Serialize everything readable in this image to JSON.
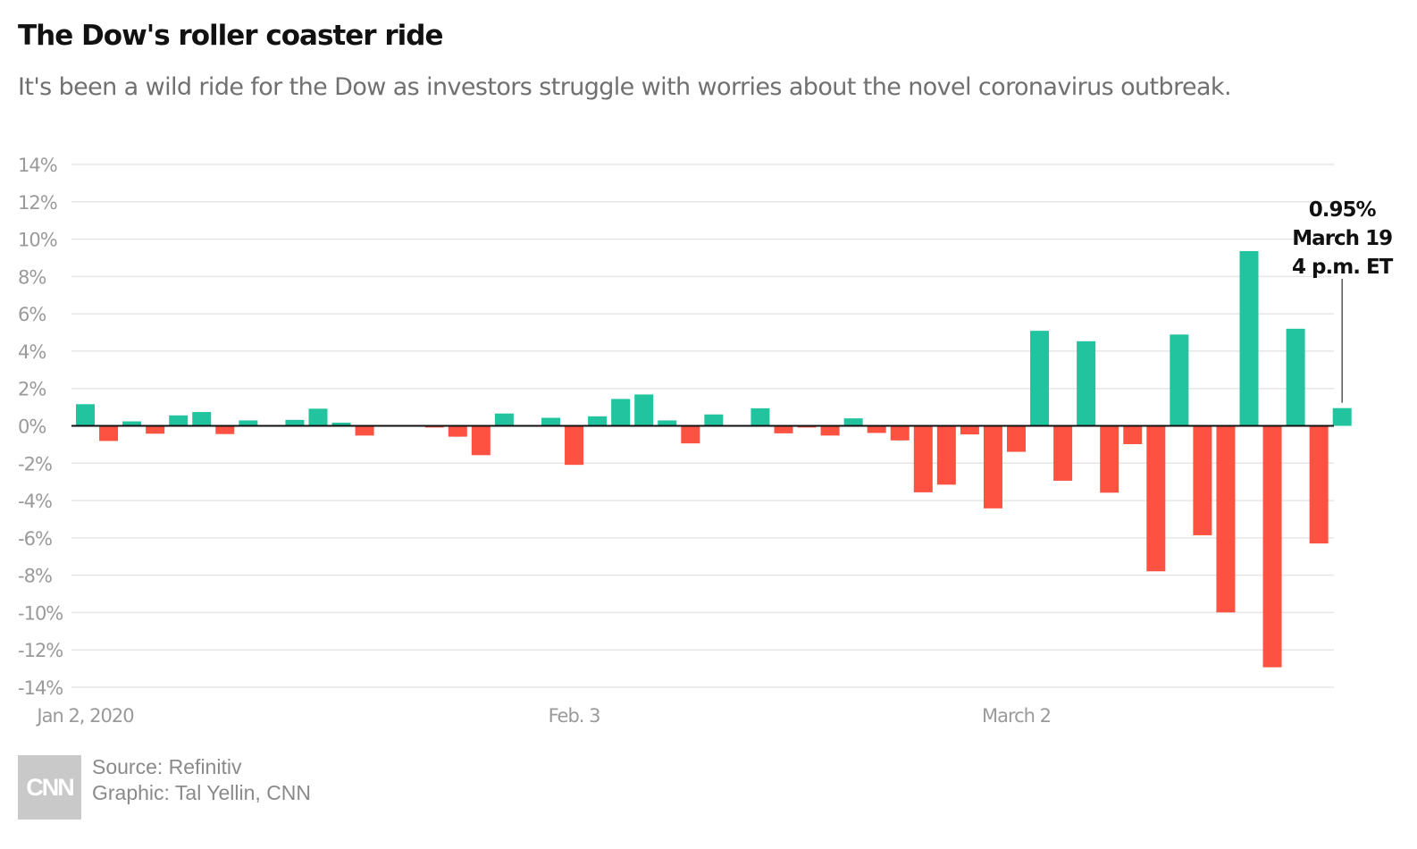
{
  "header": {
    "title": "The Dow's roller coaster ride",
    "subtitle": "It's been a wild ride for the Dow as investors struggle with worries about the novel coronavirus outbreak."
  },
  "footer": {
    "logo_text": "CNN",
    "source": "Source: Refinitiv",
    "graphic": "Graphic: Tal Yellin, CNN"
  },
  "colors": {
    "gain": "#21c49e",
    "loss": "#fd5242",
    "zero_line": "#111111",
    "grid": "#e6e6e6",
    "tick_text": "#9a9a9a"
  },
  "chart_data": {
    "type": "bar",
    "y_unit": "%",
    "ylim": [
      -14,
      14
    ],
    "y_ticks": [
      14,
      12,
      10,
      8,
      6,
      4,
      2,
      0,
      -2,
      -4,
      -6,
      -8,
      -10,
      -12,
      -14
    ],
    "y_tick_labels": [
      "14%",
      "12%",
      "10%",
      "8%",
      "6%",
      "4%",
      "2%",
      "0%",
      "-2%",
      "-4%",
      "-6%",
      "-8%",
      "-10%",
      "-12%",
      "-14%"
    ],
    "grid": true,
    "x_tick_labels": [
      {
        "label": "Jan 2, 2020",
        "index": 0
      },
      {
        "label": "Feb. 3",
        "index": 21
      },
      {
        "label": "March 2",
        "index": 40
      }
    ],
    "values": [
      1.16,
      -0.81,
      0.24,
      -0.42,
      0.56,
      0.74,
      -0.44,
      0.29,
      null,
      0.32,
      0.92,
      0.17,
      -0.52,
      null,
      null,
      -0.09,
      -0.58,
      -1.57,
      0.66,
      null,
      0.43,
      -2.09,
      0.51,
      1.44,
      1.68,
      0.29,
      -0.94,
      0.61,
      null,
      0.94,
      -0.4,
      -0.09,
      -0.52,
      0.4,
      -0.38,
      -0.78,
      -3.56,
      -3.15,
      -0.46,
      -4.42,
      -1.39,
      5.09,
      -2.94,
      4.53,
      -3.58,
      -0.98,
      -7.79,
      4.89,
      -5.86,
      -9.99,
      9.36,
      -12.93,
      5.2,
      -6.3,
      0.95
    ],
    "annotation": {
      "index": 54,
      "lines": [
        "0.95%",
        "March 19",
        "4 p.m. ET"
      ]
    }
  }
}
